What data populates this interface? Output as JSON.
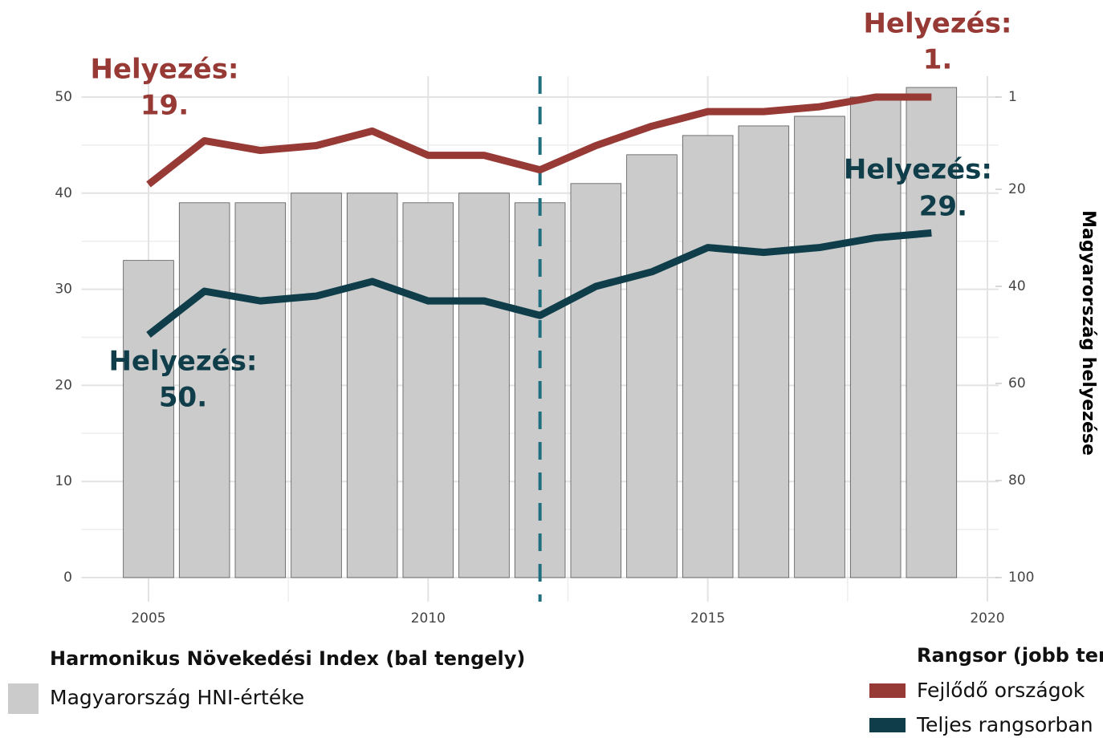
{
  "chart_data": {
    "type": "combo",
    "x": [
      2005,
      2006,
      2007,
      2008,
      2009,
      2010,
      2011,
      2012,
      2013,
      2014,
      2015,
      2016,
      2017,
      2018,
      2019
    ],
    "xlim": [
      2003.8,
      2020.2
    ],
    "xticks": [
      2005,
      2010,
      2015,
      2020
    ],
    "ylim": [
      0,
      50
    ],
    "yticks": [
      0,
      10,
      20,
      30,
      40,
      50
    ],
    "y2lim": [
      100,
      1
    ],
    "y2ticks": [
      1,
      20,
      40,
      60,
      80,
      100
    ],
    "y2label": "Magyarország helyezése",
    "grid": true,
    "vline": 2012,
    "series": [
      {
        "name": "Magyarország HNI-értéke",
        "type": "bar",
        "axis": "y",
        "color": "#cbcbcb",
        "values": [
          33,
          39,
          39,
          40,
          40,
          39,
          40,
          39,
          41,
          44,
          46,
          47,
          48,
          50,
          51
        ]
      },
      {
        "name": "Fejlődő országok",
        "type": "line",
        "axis": "y2",
        "color": "#973a36",
        "values": [
          19,
          10,
          12,
          11,
          8,
          13,
          13,
          16,
          11,
          7,
          4,
          4,
          3,
          1,
          1
        ]
      },
      {
        "name": "Teljes rangsorban",
        "type": "line",
        "axis": "y2",
        "color": "#0f3e4a",
        "values": [
          50,
          41,
          43,
          42,
          39,
          43,
          43,
          46,
          40,
          37,
          32,
          33,
          32,
          30,
          29
        ]
      }
    ],
    "legend_titles": [
      "Harmonikus Növekedési Index (bal tengely)",
      "Rangsor (jobb tengely)"
    ],
    "annotations": [
      {
        "lines": [
          "Helyezés:",
          "19."
        ],
        "color": "#973a36"
      },
      {
        "lines": [
          "Helyezés:",
          "1."
        ],
        "color": "#973a36"
      },
      {
        "lines": [
          "Helyezés:",
          "29."
        ],
        "color": "#0f3e4a"
      },
      {
        "lines": [
          "Helyezés:",
          "50."
        ],
        "color": "#0f3e4a"
      }
    ]
  }
}
